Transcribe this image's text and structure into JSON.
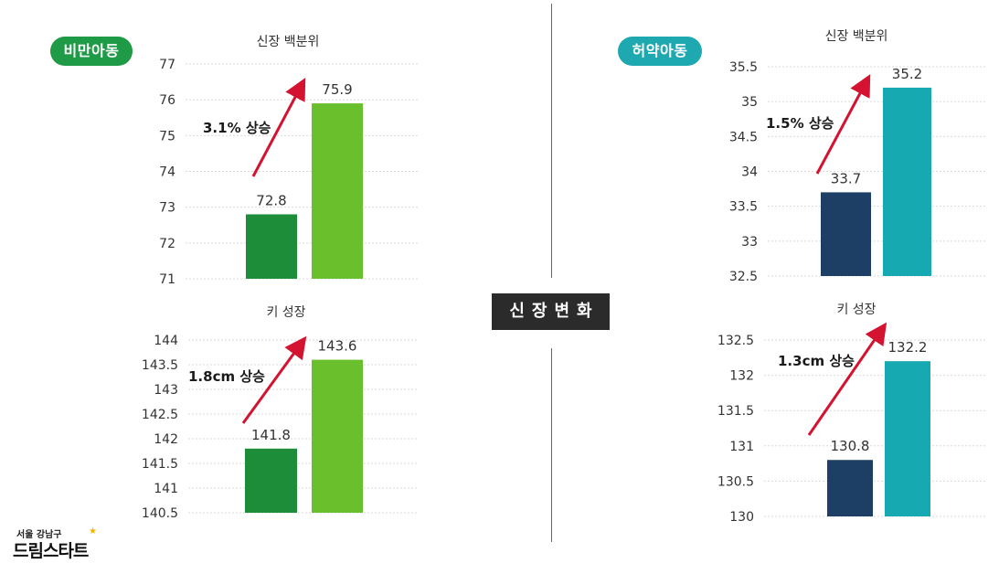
{
  "labels": {
    "obese_group": "비만아동",
    "thin_group": "허약아동",
    "center": "신장변화"
  },
  "colors": {
    "obese_pill": "#1f9a46",
    "thin_pill": "#1ea8b0",
    "center_box": "#2b2b2b",
    "arrow": "#d3132f",
    "obese_before": "#1e8d3a",
    "obese_after": "#69bf2c",
    "thin_before": "#1d3f66",
    "thin_after": "#17a9b2",
    "grid": "#d9d9d9"
  },
  "logo": {
    "top_text": "서울 강남구",
    "main_text": "드림스타트",
    "icon": "star-icon"
  },
  "chart_data": [
    {
      "type": "bar",
      "title": "신장 백분위",
      "categories": [
        "",
        ""
      ],
      "values": [
        72.8,
        75.9
      ],
      "value_labels": [
        "72.8",
        "75.9"
      ],
      "ylim": [
        71,
        77
      ],
      "yticks": [
        71,
        72,
        73,
        74,
        75,
        76,
        77
      ],
      "ytick_labels": [
        "71",
        "72",
        "73",
        "74",
        "75",
        "76",
        "77"
      ],
      "annotation": "3.1% 상승",
      "grid": true
    },
    {
      "type": "bar",
      "title": "키 성장",
      "categories": [
        "",
        ""
      ],
      "values": [
        141.8,
        143.6
      ],
      "value_labels": [
        "141.8",
        "143.6"
      ],
      "ylim": [
        140.5,
        144
      ],
      "yticks": [
        140.5,
        141,
        141.5,
        142,
        142.5,
        143,
        143.5,
        144
      ],
      "ytick_labels": [
        "140.5",
        "141",
        "141.5",
        "142",
        "142.5",
        "143",
        "143.5",
        "144"
      ],
      "annotation": "1.8cm 상승",
      "grid": true
    },
    {
      "type": "bar",
      "title": "신장 백분위",
      "categories": [
        "",
        ""
      ],
      "values": [
        33.7,
        35.2
      ],
      "value_labels": [
        "33.7",
        "35.2"
      ],
      "ylim": [
        32.5,
        35.5
      ],
      "yticks": [
        32.5,
        33,
        33.5,
        34,
        34.5,
        35,
        35.5
      ],
      "ytick_labels": [
        "32.5",
        "33",
        "33.5",
        "34",
        "34.5",
        "35",
        "35.5"
      ],
      "annotation": "1.5% 상승",
      "grid": true
    },
    {
      "type": "bar",
      "title": "키 성장",
      "categories": [
        "",
        ""
      ],
      "values": [
        130.8,
        132.2
      ],
      "value_labels": [
        "130.8",
        "132.2"
      ],
      "ylim": [
        130,
        132.5
      ],
      "yticks": [
        130,
        130.5,
        131,
        131.5,
        132,
        132.5
      ],
      "ytick_labels": [
        "130",
        "130.5",
        "131",
        "131.5",
        "132",
        "132.5"
      ],
      "annotation": "1.3cm 상승",
      "grid": true
    }
  ]
}
